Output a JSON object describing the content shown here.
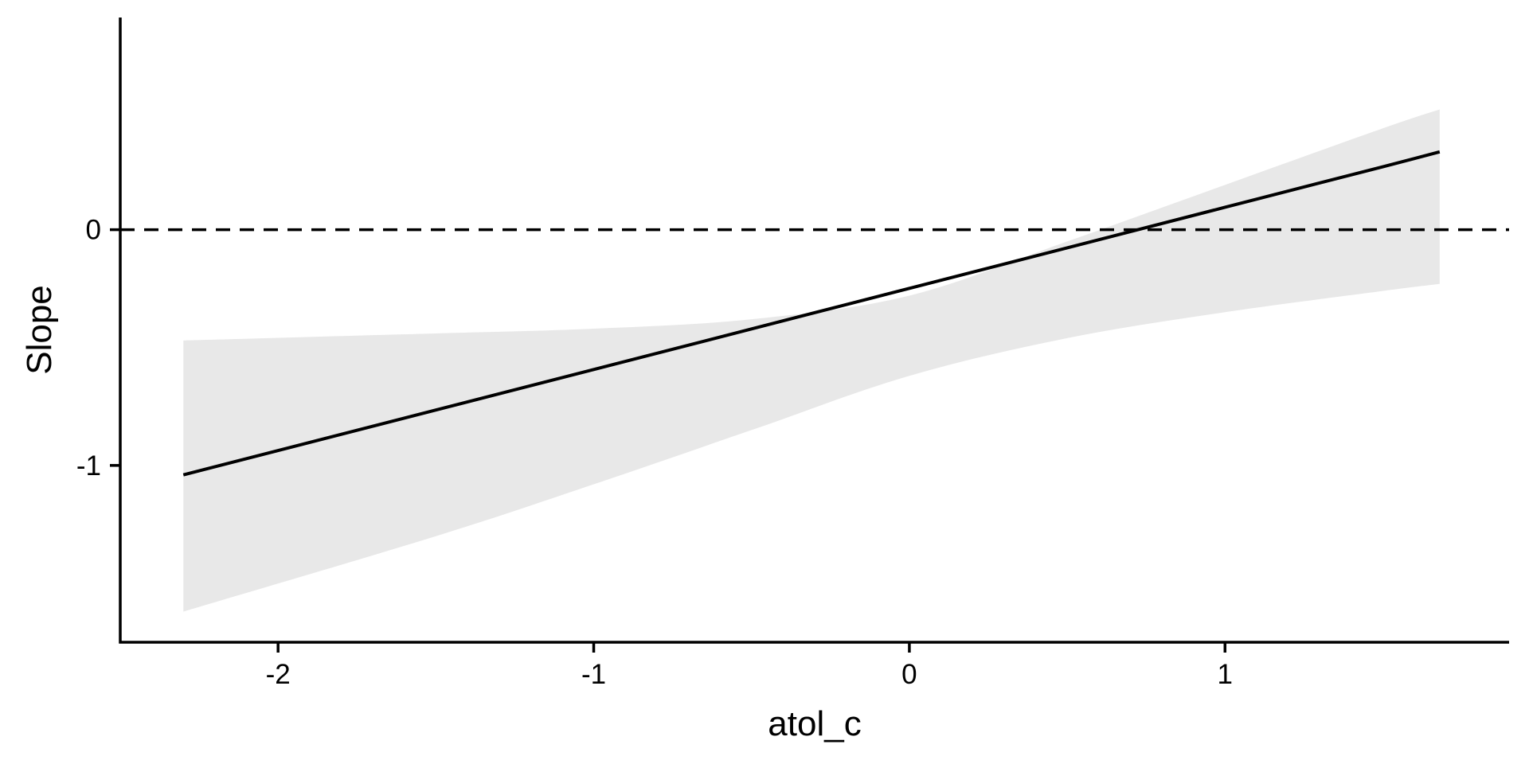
{
  "chart_data": {
    "type": "line",
    "xlabel": "atol_c",
    "ylabel": "Slope",
    "xlim": [
      -2.5,
      1.9
    ],
    "ylim": [
      -1.75,
      0.9
    ],
    "x_ticks": [
      -2,
      -1,
      0,
      1
    ],
    "x_tick_labels": [
      "-2",
      "-1",
      "0",
      "1"
    ],
    "y_ticks": [
      -1,
      0
    ],
    "y_tick_labels": [
      "-1",
      "0"
    ],
    "grid": false,
    "reference_line": {
      "y": 0,
      "style": "dashed"
    },
    "series": [
      {
        "x": [
          -2.3,
          -1.5,
          -1.0,
          -0.5,
          0.0,
          0.5,
          1.0,
          1.5,
          1.68
        ],
        "y": [
          -1.04,
          -0.765,
          -0.593,
          -0.421,
          -0.249,
          -0.077,
          0.095,
          0.267,
          0.33
        ],
        "ci_lower": [
          -1.62,
          -1.3,
          -1.08,
          -0.85,
          -0.62,
          -0.46,
          -0.35,
          -0.26,
          -0.23
        ],
        "ci_upper": [
          -0.47,
          -0.44,
          -0.42,
          -0.38,
          -0.28,
          -0.05,
          0.19,
          0.43,
          0.51
        ]
      }
    ],
    "colors": {
      "line": "#000000",
      "ribbon": "#e8e8e8",
      "axis": "#000000",
      "background": "#ffffff"
    }
  }
}
